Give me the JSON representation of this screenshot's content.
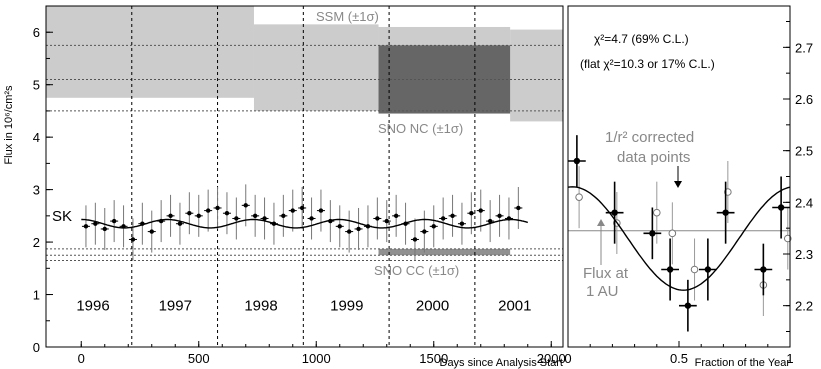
{
  "chart_data": [
    {
      "type": "scatter",
      "xlabel": "Days since Analysis Start",
      "ylabel": "Flux in 10⁶/cm²s",
      "xlim": [
        -150,
        2050
      ],
      "ylim": [
        0,
        6.5
      ],
      "xticks": [
        0,
        500,
        1000,
        1500,
        2000
      ],
      "yticks": [
        0,
        1,
        2,
        3,
        4,
        5,
        6
      ],
      "grid": false,
      "year_boundaries": [
        215,
        580,
        945,
        1310,
        1675
      ],
      "year_labels": [
        {
          "text": "1996",
          "x": 50
        },
        {
          "text": "1997",
          "x": 400
        },
        {
          "text": "1998",
          "x": 765
        },
        {
          "text": "1999",
          "x": 1130
        },
        {
          "text": "2000",
          "x": 1495
        },
        {
          "text": "2001",
          "x": 1845
        }
      ],
      "bands": [
        {
          "name": "SSM (±1σ)",
          "segments": [
            [
              -150,
              735,
              4.75,
              6.5
            ],
            [
              735,
              1265,
              4.5,
              6.15
            ],
            [
              1265,
              1825,
              4.5,
              6.1
            ],
            [
              1825,
              2050,
              4.3,
              6.05
            ]
          ],
          "central": 5.1,
          "low": 4.5,
          "high": 5.75,
          "color": "#cccccc"
        },
        {
          "name": "SNO NC (±1σ)",
          "x_range": [
            1265,
            1825
          ],
          "low": 4.45,
          "high": 5.75,
          "color": "#666666"
        },
        {
          "name": "SNO CC (±1σ)",
          "x_range": [
            1265,
            1825
          ],
          "low": 1.75,
          "high": 1.87,
          "color": "#909090",
          "dotted_lines": [
            1.65,
            1.75,
            1.87
          ]
        }
      ],
      "series": [
        {
          "name": "SK",
          "x": [
            20,
            60,
            100,
            140,
            180,
            220,
            260,
            300,
            340,
            380,
            420,
            460,
            500,
            540,
            580,
            620,
            660,
            700,
            740,
            780,
            820,
            860,
            900,
            940,
            980,
            1020,
            1060,
            1100,
            1140,
            1180,
            1220,
            1260,
            1300,
            1340,
            1380,
            1420,
            1460,
            1500,
            1540,
            1580,
            1620,
            1660,
            1700,
            1740,
            1780,
            1820,
            1860
          ],
          "y": [
            2.3,
            2.35,
            2.25,
            2.4,
            2.3,
            2.05,
            2.35,
            2.2,
            2.4,
            2.5,
            2.35,
            2.55,
            2.5,
            2.6,
            2.65,
            2.55,
            2.45,
            2.7,
            2.5,
            2.45,
            2.35,
            2.5,
            2.6,
            2.65,
            2.45,
            2.6,
            2.4,
            2.3,
            2.2,
            2.25,
            2.3,
            2.45,
            2.4,
            2.5,
            2.35,
            2.05,
            2.2,
            2.3,
            2.45,
            2.5,
            2.35,
            2.55,
            2.6,
            2.4,
            2.5,
            2.45,
            2.65
          ],
          "yerr": 0.4
        },
        {
          "name": "expected modulation",
          "type": "line",
          "mean": 2.35,
          "amplitude": 0.08,
          "period_days": 365.25,
          "phase_peak_day": 1
        }
      ]
    },
    {
      "type": "scatter",
      "xlabel": "Fraction of the Year",
      "xlim": [
        0,
        1
      ],
      "ylim": [
        2.12,
        2.78
      ],
      "xticks": [
        0,
        0.5,
        1
      ],
      "yticks": [
        2.2,
        2.3,
        2.4,
        2.5,
        2.6,
        2.7
      ],
      "reference_line": 2.345,
      "series": [
        {
          "name": "SK",
          "x": [
            0.04,
            0.21,
            0.38,
            0.46,
            0.54,
            0.63,
            0.71,
            0.88,
            0.96
          ],
          "y": [
            2.48,
            2.38,
            2.34,
            2.27,
            2.2,
            2.27,
            2.38,
            2.27,
            2.39
          ],
          "yerr": [
            0.05,
            0.06,
            0.05,
            0.06,
            0.05,
            0.06,
            0.06,
            0.05,
            0.06
          ],
          "xerr": 0.04,
          "filled": true
        },
        {
          "name": "1/r² corrected data points",
          "x": [
            0.05,
            0.22,
            0.4,
            0.47,
            0.57,
            0.72,
            0.88,
            0.99
          ],
          "y": [
            2.41,
            2.36,
            2.38,
            2.34,
            2.27,
            2.42,
            2.24,
            2.33
          ],
          "yerr": 0.06,
          "filled": false
        },
        {
          "name": "fit",
          "type": "line",
          "mean": 2.33,
          "amplitude": 0.1,
          "peak_fraction": 0.02
        }
      ],
      "annotations": [
        "χ²=4.7 (69% C.L.)",
        "(flat χ²=10.3 or 17% C.L.)",
        "1/r² corrected",
        "data points",
        "Flux at",
        "1 AU"
      ]
    }
  ],
  "labels": {
    "ssm": "SSM (±1σ)",
    "sno_nc": "SNO NC (±1σ)",
    "sno_cc": "SNO CC (±1σ)",
    "sk": "SK",
    "ylabel_main": "Flux in 10⁶/cm²s",
    "xlabel_left": "Days since Analysis Start",
    "xlabel_right": "Fraction of the Year",
    "chi2": "χ²=4.7 (69% C.L.)",
    "flat_chi2": "(flat χ²=10.3 or 17% C.L.)",
    "corrected1": "1/r² corrected",
    "corrected2": "data points",
    "flux_au1": "Flux at",
    "flux_au2": "1 AU"
  }
}
